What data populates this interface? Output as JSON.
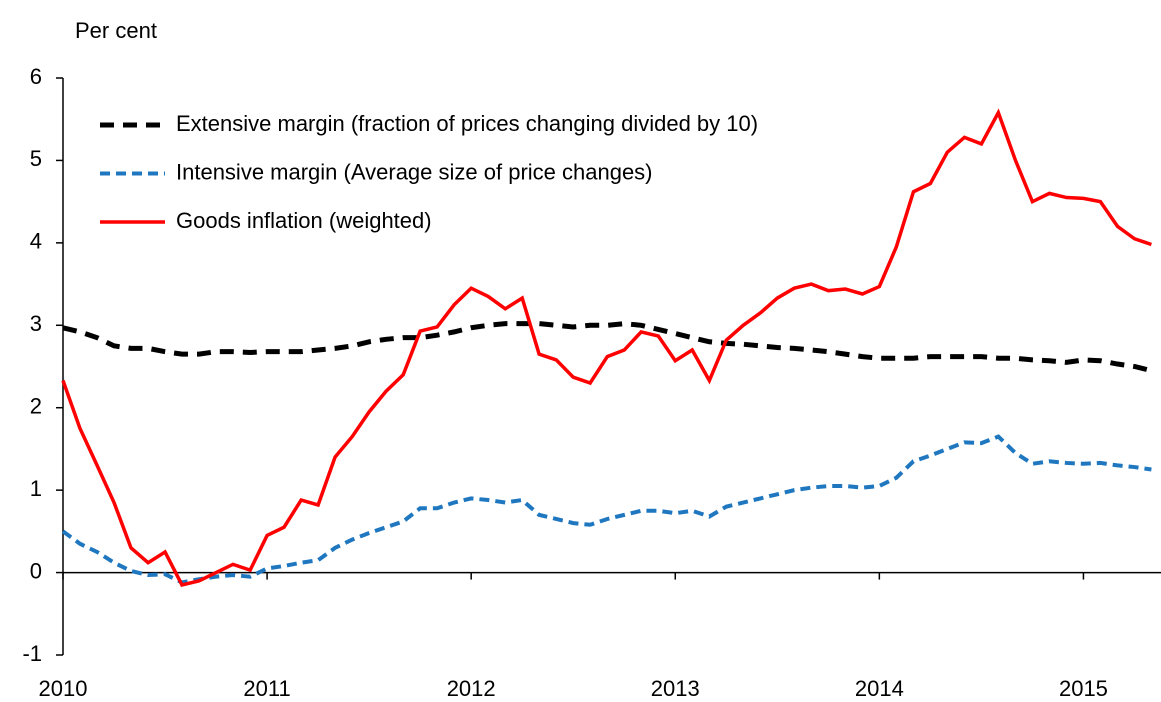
{
  "chart_data": {
    "type": "line",
    "y_label": "Per cent",
    "x": [
      2010,
      2010.083,
      2010.167,
      2010.25,
      2010.333,
      2010.417,
      2010.5,
      2010.583,
      2010.667,
      2010.75,
      2010.833,
      2010.917,
      2011,
      2011.083,
      2011.167,
      2011.25,
      2011.333,
      2011.417,
      2011.5,
      2011.583,
      2011.667,
      2011.75,
      2011.833,
      2011.917,
      2012,
      2012.083,
      2012.167,
      2012.25,
      2012.333,
      2012.417,
      2012.5,
      2012.583,
      2012.667,
      2012.75,
      2012.833,
      2012.917,
      2013,
      2013.083,
      2013.167,
      2013.25,
      2013.333,
      2013.417,
      2013.5,
      2013.583,
      2013.667,
      2013.75,
      2013.833,
      2013.917,
      2014,
      2014.083,
      2014.167,
      2014.25,
      2014.333,
      2014.417,
      2014.5,
      2014.583,
      2014.667,
      2014.75,
      2014.833,
      2014.917,
      2015,
      2015.083,
      2015.167,
      2015.25,
      2015.333
    ],
    "series": [
      {
        "name": "Extensive margin (fraction of prices changing divided by 10)",
        "color": "#000000",
        "linestyle": "dashed",
        "values": [
          2.97,
          2.92,
          2.85,
          2.75,
          2.72,
          2.72,
          2.68,
          2.65,
          2.65,
          2.68,
          2.68,
          2.67,
          2.68,
          2.68,
          2.68,
          2.7,
          2.72,
          2.75,
          2.8,
          2.83,
          2.85,
          2.85,
          2.88,
          2.92,
          2.97,
          3.0,
          3.02,
          3.02,
          3.02,
          3.0,
          2.98,
          3.0,
          3.0,
          3.02,
          3.0,
          2.95,
          2.9,
          2.85,
          2.8,
          2.78,
          2.77,
          2.75,
          2.73,
          2.72,
          2.7,
          2.68,
          2.65,
          2.62,
          2.6,
          2.6,
          2.6,
          2.62,
          2.62,
          2.62,
          2.62,
          2.6,
          2.6,
          2.58,
          2.57,
          2.55,
          2.58,
          2.57,
          2.53,
          2.5,
          2.45
        ]
      },
      {
        "name": "Intensive margin (Average size of price changes)",
        "color": "#1f77c0",
        "linestyle": "dashed",
        "values": [
          0.5,
          0.35,
          0.25,
          0.12,
          0.02,
          -0.03,
          -0.02,
          -0.12,
          -0.08,
          -0.05,
          -0.03,
          -0.05,
          0.05,
          0.08,
          0.12,
          0.15,
          0.3,
          0.4,
          0.48,
          0.55,
          0.62,
          0.78,
          0.78,
          0.85,
          0.9,
          0.88,
          0.85,
          0.88,
          0.7,
          0.65,
          0.6,
          0.58,
          0.65,
          0.7,
          0.75,
          0.75,
          0.72,
          0.75,
          0.68,
          0.8,
          0.85,
          0.9,
          0.95,
          1.0,
          1.03,
          1.05,
          1.05,
          1.03,
          1.05,
          1.15,
          1.35,
          1.42,
          1.5,
          1.58,
          1.57,
          1.65,
          1.45,
          1.32,
          1.35,
          1.33,
          1.32,
          1.33,
          1.3,
          1.28,
          1.25
        ]
      },
      {
        "name": "Goods inflation (weighted)",
        "color": "#ff0000",
        "linestyle": "solid",
        "values": [
          2.33,
          1.75,
          1.3,
          0.85,
          0.3,
          0.12,
          0.25,
          -0.15,
          -0.1,
          0.0,
          0.1,
          0.03,
          0.45,
          0.55,
          0.88,
          0.82,
          1.4,
          1.65,
          1.95,
          2.2,
          2.4,
          2.93,
          2.98,
          3.25,
          3.45,
          3.35,
          3.2,
          3.33,
          2.65,
          2.58,
          2.37,
          2.3,
          2.62,
          2.7,
          2.92,
          2.87,
          2.57,
          2.7,
          2.33,
          2.82,
          3.0,
          3.15,
          3.33,
          3.45,
          3.5,
          3.42,
          3.44,
          3.38,
          3.47,
          3.95,
          4.62,
          4.72,
          5.1,
          5.28,
          5.2,
          5.58,
          5.0,
          4.5,
          4.6,
          4.55,
          4.54,
          4.5,
          4.2,
          4.05,
          3.98
        ]
      }
    ],
    "xlim": [
      2010,
      2015.38
    ],
    "xticks": [
      2010,
      2011,
      2012,
      2013,
      2014,
      2015
    ],
    "ylim": [
      -1,
      6
    ],
    "yticks": [
      -1,
      0,
      1,
      2,
      3,
      4,
      5,
      6
    ],
    "legend": "upper left",
    "grid": false
  }
}
